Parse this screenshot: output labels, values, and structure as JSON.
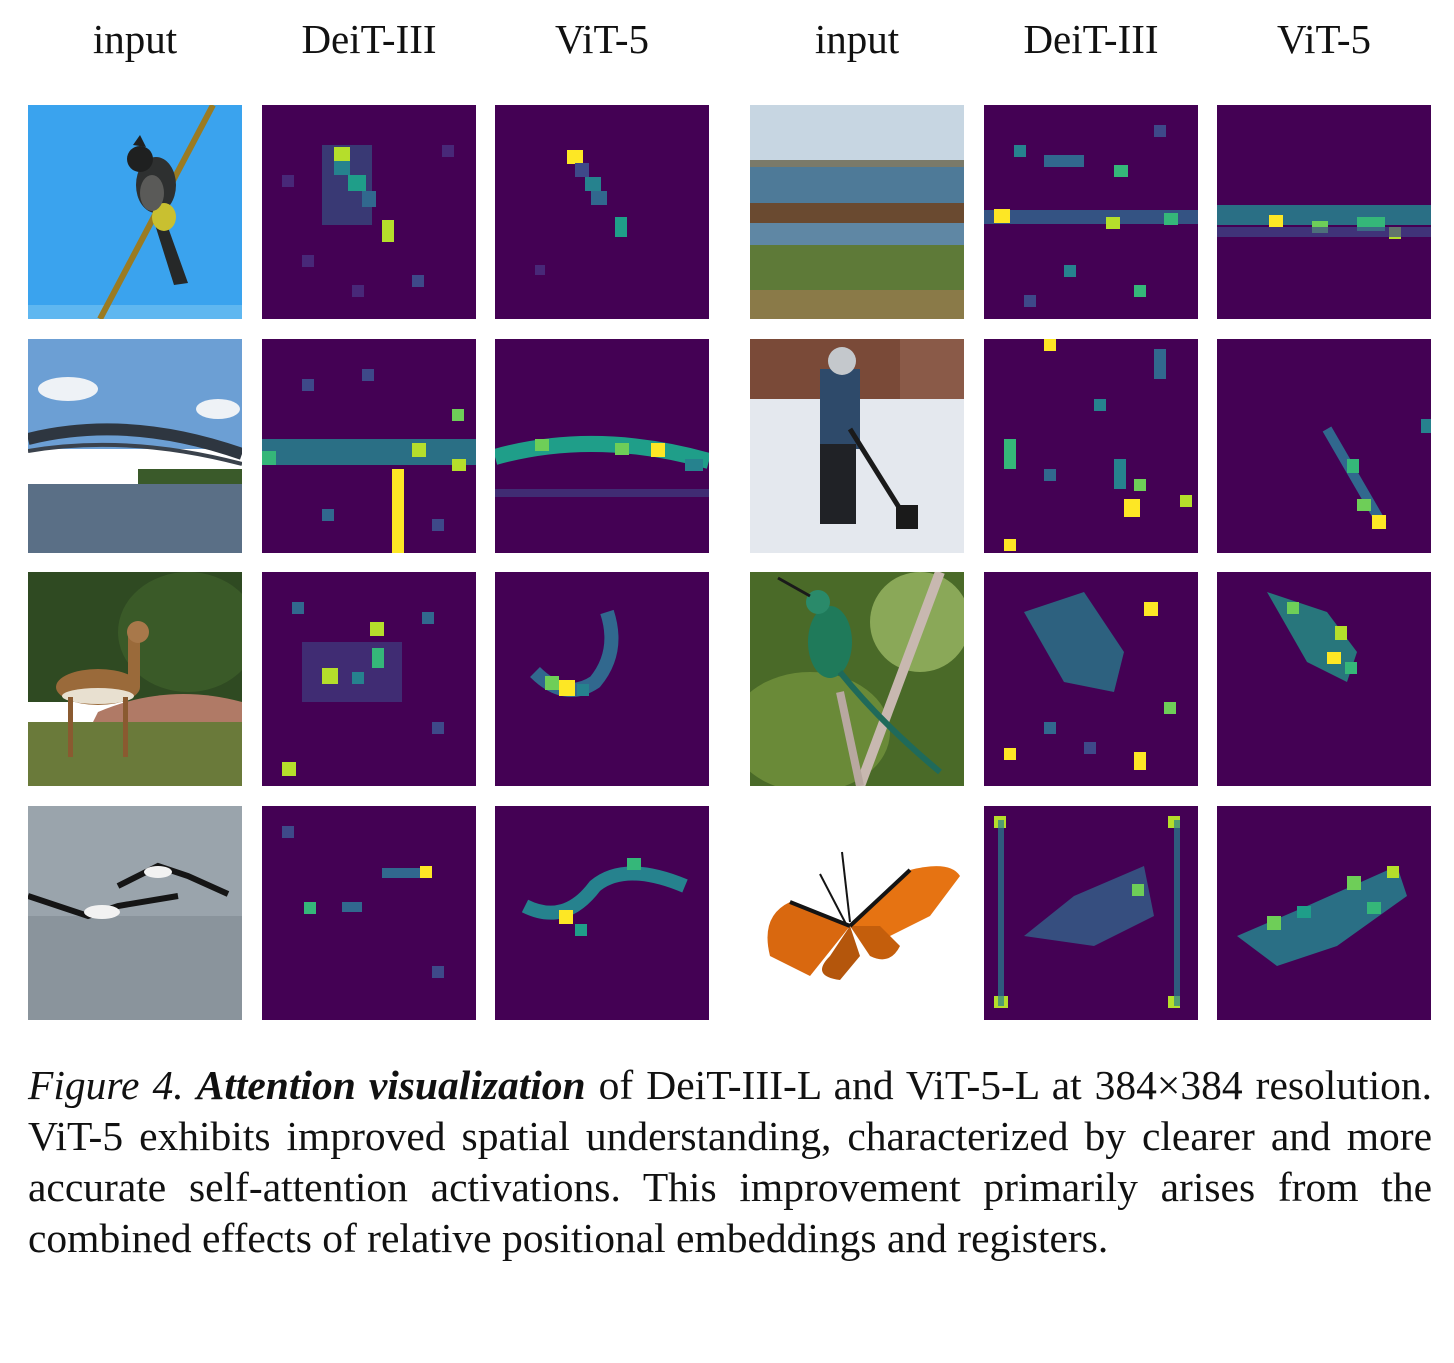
{
  "figure": {
    "column_headers": [
      "input",
      "DeiT-III",
      "ViT-5",
      "input",
      "DeiT-III",
      "ViT-5"
    ],
    "colormap": [
      "#440154",
      "#482878",
      "#3e4989",
      "#31688e",
      "#26828e",
      "#1f9e89",
      "#35b779",
      "#6ece58",
      "#b5de2b",
      "#fde725"
    ],
    "rows": [
      {
        "left": {
          "input": "bird-on-branch-blue-sky-photo",
          "deit": "scattered-attention-bird",
          "vit5": "focused-attention-bird"
        },
        "right": {
          "input": "shoreline-sea-photo",
          "deit": "scattered-attention-shoreline",
          "vit5": "horizontal-band-shoreline"
        }
      },
      {
        "left": {
          "input": "arched-bridge-over-river-photo",
          "deit": "noisy-band-bridge",
          "vit5": "clean-arc-bridge"
        },
        "right": {
          "input": "person-shoveling-snow-photo",
          "deit": "scattered-attention-shovel",
          "vit5": "diagonal-line-shovel"
        }
      },
      {
        "left": {
          "input": "gazelle-on-grass-photo",
          "deit": "scattered-attention-gazelle",
          "vit5": "curved-attention-gazelle"
        },
        "right": {
          "input": "hummingbird-on-branch-photo",
          "deit": "diffuse-attention-hummingbird",
          "vit5": "focused-attention-hummingbird"
        }
      },
      {
        "left": {
          "input": "seabirds-flying-over-water-photo",
          "deit": "sparse-attention-seabirds",
          "vit5": "wave-attention-seabirds"
        },
        "right": {
          "input": "monarch-butterfly-photo",
          "deit": "corner-artifacts-butterfly",
          "vit5": "wing-shaped-butterfly"
        }
      }
    ]
  },
  "caption": {
    "label": "Figure 4.",
    "bold_title": "Attention visualization",
    "text": " of DeiT-III-L and ViT-5-L at 384×384 resolution. ViT-5 exhibits improved spatial understanding, characterized by clearer and more accurate self-attention activations. This improvement primarily arises from the combined effects of relative positional embeddings and registers."
  }
}
